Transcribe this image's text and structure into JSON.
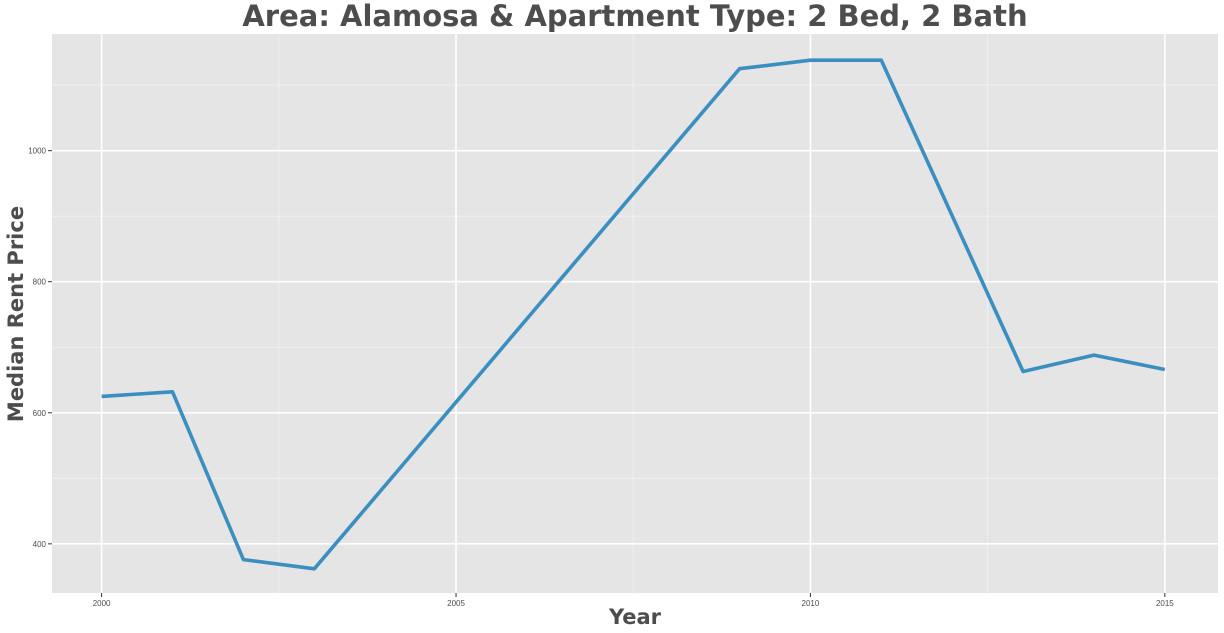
{
  "chart_data": {
    "type": "line",
    "title": "Area: Alamosa & Apartment Type: 2 Bed, 2 Bath",
    "xlabel": "Year",
    "ylabel": "Median Rent Price",
    "x": [
      2000,
      2001,
      2002,
      2003,
      2009,
      2010,
      2011,
      2013,
      2014,
      2015
    ],
    "series": [
      {
        "values": [
          625,
          632,
          376,
          362,
          1125,
          1138,
          1138,
          663,
          688,
          666
        ]
      }
    ],
    "xlim": [
      1999.3,
      2015.75
    ],
    "ylim": [
      325,
      1178
    ],
    "xticks": [
      2000,
      2005,
      2010,
      2015
    ],
    "yticks": [
      400,
      600,
      800,
      1000
    ],
    "grid": true,
    "legend": "none",
    "colors": {
      "panel": "#e5e5e5",
      "grid_major": "#ffffff",
      "grid_minor": "#f2f2f2",
      "line": "#3a8fc0",
      "text": "#4d4d4d"
    }
  }
}
